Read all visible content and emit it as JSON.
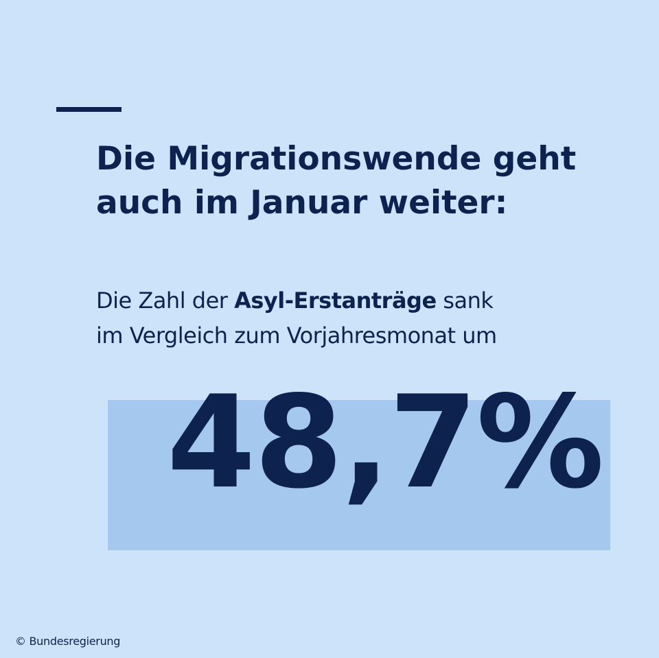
{
  "headline": {
    "line1": "Die Migrationswende geht",
    "line2": "auch im Januar weiter:"
  },
  "body": {
    "line1_prefix": "Die Zahl der ",
    "line1_bold": "Asyl-Erstanträge",
    "line1_suffix": " sank",
    "line2": "im Vergleich zum Vorjahresmonat um"
  },
  "statistic": {
    "value": "48,7%"
  },
  "footer": {
    "copyright": "© Bundesregierung"
  },
  "colors": {
    "background": "#cde3f9",
    "highlight": "#a5c9ee",
    "text": "#0e2250"
  }
}
